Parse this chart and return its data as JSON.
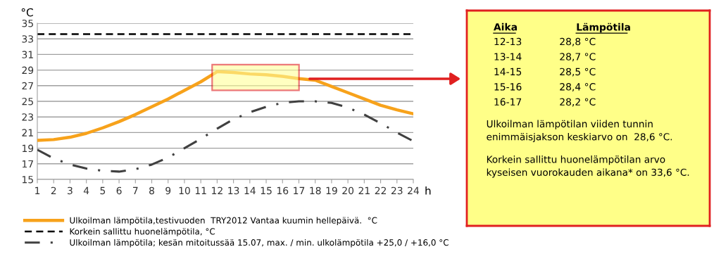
{
  "chart_data": [
    {
      "type": "line",
      "xlabel": "h",
      "ylabel": "°C",
      "x": [
        1,
        2,
        3,
        4,
        5,
        6,
        7,
        8,
        9,
        10,
        11,
        12,
        13,
        14,
        15,
        16,
        17,
        18,
        19,
        20,
        21,
        22,
        23,
        24
      ],
      "series": [
        {
          "name": "Ulkoilman lämpötila,testivuoden  TRY2012 Vantaa kuumin hellepäivä.  °C",
          "color": "#f7a21b",
          "line_style": "solid",
          "values": [
            20.0,
            20.1,
            20.4,
            20.9,
            21.6,
            22.4,
            23.3,
            24.3,
            25.3,
            26.4,
            27.5,
            28.8,
            28.7,
            28.5,
            28.4,
            28.2,
            27.9,
            27.7,
            26.9,
            26.1,
            25.3,
            24.5,
            23.9,
            23.4
          ]
        },
        {
          "name": "Ulkoilman lämpötila; kesän mitoitussää 15.07, max. / min. ulkolämpötila +25,0 / +16,0 °C",
          "color": "#404040",
          "line_style": "dashdot",
          "values": [
            18.8,
            17.7,
            16.9,
            16.4,
            16.1,
            16.0,
            16.3,
            16.9,
            17.8,
            19.0,
            20.2,
            21.5,
            22.7,
            23.6,
            24.3,
            24.8,
            25.0,
            25.0,
            24.8,
            24.2,
            23.3,
            22.2,
            21.0,
            19.9
          ]
        }
      ],
      "ref_lines": [
        {
          "axis": "y",
          "value": 33.6,
          "label": "Korkein sallittu huonelämpötila, °C",
          "color": "#000000",
          "line_style": "dashed"
        }
      ],
      "xlim": [
        1,
        24
      ],
      "xticks": [
        1,
        2,
        3,
        4,
        5,
        6,
        7,
        8,
        9,
        10,
        11,
        12,
        13,
        14,
        15,
        16,
        17,
        18,
        19,
        20,
        21,
        22,
        23,
        24
      ],
      "ylim": [
        15,
        35
      ],
      "yticks": [
        15,
        17,
        19,
        21,
        23,
        25,
        27,
        29,
        31,
        33,
        35
      ],
      "grid": "y",
      "legend": "bottom",
      "marker": "none"
    },
    {
      "type": "other",
      "annotations": [
        "Aika",
        "Lämpötila",
        "12-13",
        "28,8 °C",
        "13-14",
        "28,7 °C",
        "14-15",
        "28,5 °C",
        "15-16",
        "28,4 °C",
        "16-17",
        "28,2 °C",
        "Ulkoilman lämpötilan viiden tunnin\nenimmäisjakson keskiarvo on  28,6 °C.",
        "Korkein sallittu huonelämpötilan arvo\nkyseisen vuorokauden aikana* on 33,6 °C."
      ]
    }
  ]
}
